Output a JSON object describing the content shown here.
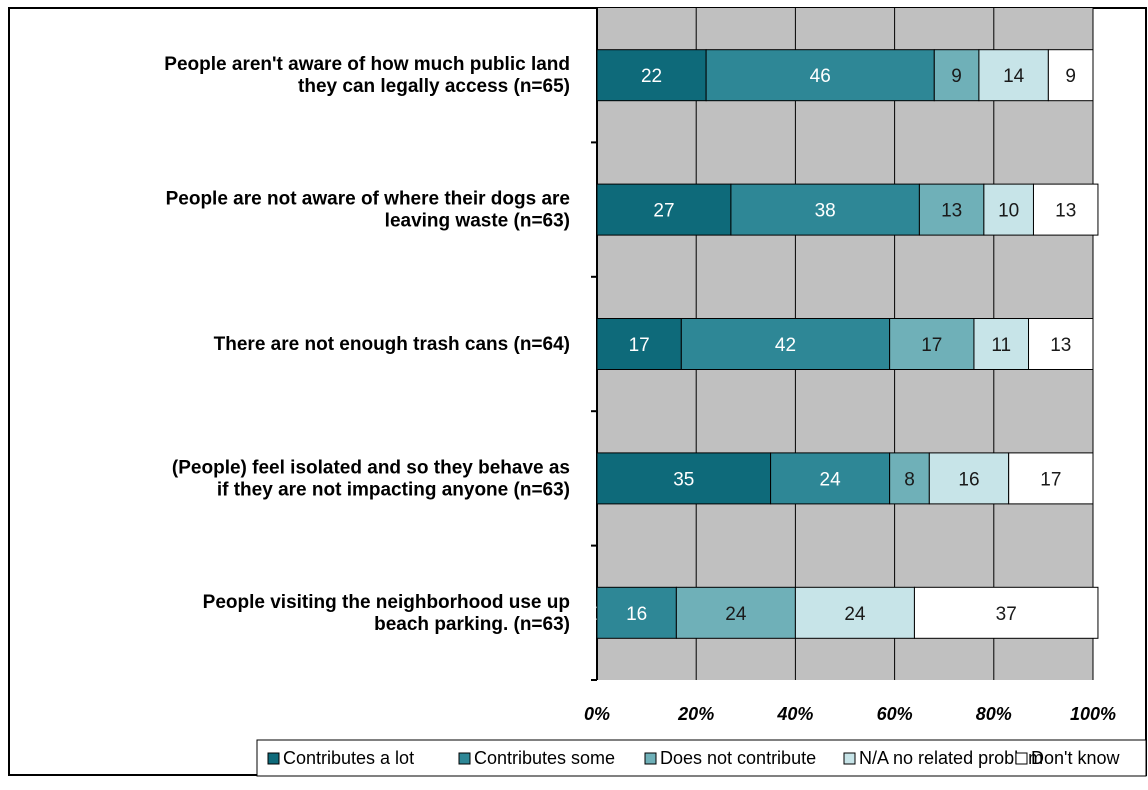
{
  "chart_data": {
    "type": "bar",
    "orientation": "horizontal",
    "stacked": true,
    "percent_stacked": true,
    "categories": [
      [
        "People aren't aware of how much public land",
        "they can legally access (n=65)"
      ],
      [
        "People are not aware of where their dogs are",
        "leaving waste (n=63)"
      ],
      [
        "There are not enough trash cans (n=64)"
      ],
      [
        "(People) feel isolated and so they behave as",
        "if they are not impacting anyone (n=63)"
      ],
      [
        "People visiting the neighborhood use up",
        "beach parking. (n=63)"
      ]
    ],
    "series": [
      {
        "name": "Contributes a lot",
        "values": [
          22,
          27,
          17,
          35,
          0
        ],
        "labels": [
          "22",
          "27",
          "17",
          "35",
          "0"
        ]
      },
      {
        "name": "Contributes some",
        "values": [
          46,
          38,
          42,
          24,
          16
        ],
        "labels": [
          "46",
          "38",
          "42",
          "24",
          "16"
        ]
      },
      {
        "name": "Does not contribute",
        "values": [
          9,
          13,
          17,
          8,
          24
        ],
        "labels": [
          "9",
          "13",
          "17",
          "8",
          "24"
        ]
      },
      {
        "name": "N/A no related problem",
        "values": [
          14,
          10,
          11,
          16,
          24
        ],
        "labels": [
          "14",
          "10",
          "11",
          "16",
          "24"
        ]
      },
      {
        "name": "Don't know",
        "values": [
          9,
          13,
          13,
          17,
          37
        ],
        "labels": [
          "9",
          "13",
          "13",
          "17",
          "37"
        ]
      }
    ],
    "x_ticks": [
      "0%",
      "20%",
      "40%",
      "60%",
      "80%",
      "100%"
    ],
    "xlim": [
      0,
      100
    ],
    "grid": true,
    "legend_position": "bottom",
    "colors": {
      "series": [
        "#0e6a7a",
        "#2e8796",
        "#6fb0b8",
        "#c7e4e8",
        "#ffffff"
      ],
      "label_text": [
        "#ffffff",
        "#ffffff",
        "#1a1a1a",
        "#1a1a1a",
        "#1a1a1a"
      ],
      "plot_background": "#c0c0c0",
      "gridline": "#000000"
    }
  }
}
